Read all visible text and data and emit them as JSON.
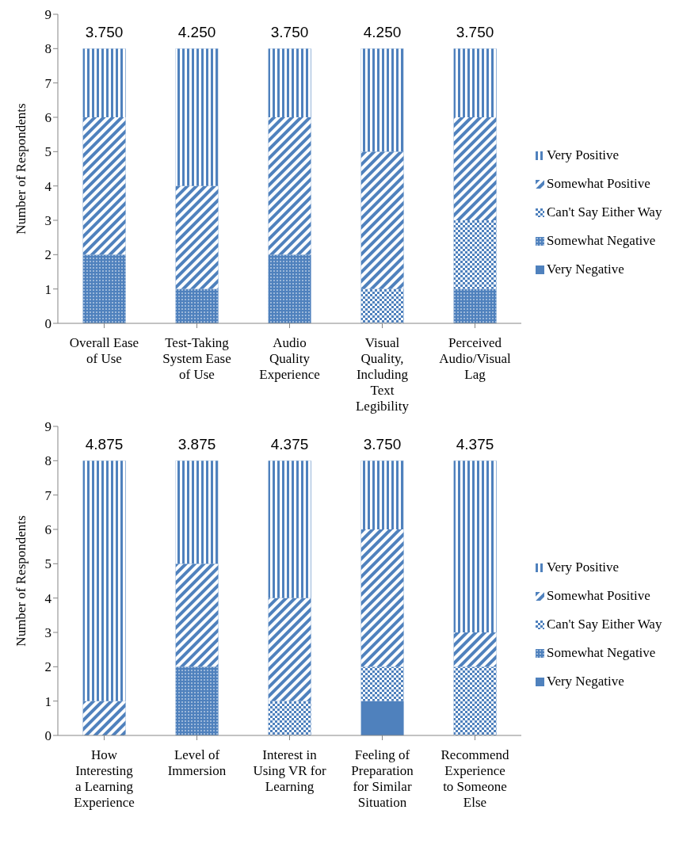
{
  "chart_data": [
    {
      "type": "bar",
      "stacked": true,
      "ylabel": "Number of Respondents",
      "categories": [
        "Overall Ease of Use",
        "Test-Taking System Ease of Use",
        "Audio Quality Experience",
        "Visual Quality, Including Text Legibility",
        "Perceived Audio/Visual Lag"
      ],
      "series": [
        {
          "name": "Very Negative",
          "color": "#4f81bd",
          "values": [
            0,
            0,
            0,
            0,
            0
          ]
        },
        {
          "name": "Somewhat Negative",
          "color": "#4f81bd",
          "values": [
            2,
            1,
            2,
            0,
            1
          ]
        },
        {
          "name": "Can't Say Either Way",
          "color": "#4f81bd",
          "values": [
            0,
            0,
            0,
            1,
            2
          ]
        },
        {
          "name": "Somewhat Positive",
          "color": "#4f81bd",
          "values": [
            4,
            3,
            4,
            4,
            3
          ]
        },
        {
          "name": "Very Positive",
          "color": "#4f81bd",
          "values": [
            2,
            4,
            2,
            3,
            2
          ]
        }
      ],
      "annotations": [
        {
          "text": "3.750",
          "x": "Overall Ease of Use",
          "y": 8
        },
        {
          "text": "4.250",
          "x": "Test-Taking System Ease of Use",
          "y": 8
        },
        {
          "text": "3.750",
          "x": "Audio Quality Experience",
          "y": 8
        },
        {
          "text": "4.250",
          "x": "Visual Quality, Including Text Legibility",
          "y": 8
        },
        {
          "text": "3.750",
          "x": "Perceived Audio/Visual Lag",
          "y": 8
        }
      ],
      "ylim": [
        0,
        9
      ],
      "yticks": [
        0,
        1,
        2,
        3,
        4,
        5,
        6,
        7,
        8,
        9
      ],
      "legend": "right"
    },
    {
      "type": "bar",
      "stacked": true,
      "ylabel": "Number of Respondents",
      "categories": [
        "How Interesting a Learning Experience",
        "Level of Immersion",
        "Interest in Using VR for Learning",
        "Feeling of Preparation for Similar Situation",
        "Recommend Experience to Someone Else"
      ],
      "series": [
        {
          "name": "Very Negative",
          "color": "#4f81bd",
          "values": [
            0,
            0,
            0,
            1,
            0
          ]
        },
        {
          "name": "Somewhat Negative",
          "color": "#4f81bd",
          "values": [
            0,
            2,
            0,
            0,
            0
          ]
        },
        {
          "name": "Can't Say Either Way",
          "color": "#4f81bd",
          "values": [
            0,
            0,
            1,
            1,
            2
          ]
        },
        {
          "name": "Somewhat Positive",
          "color": "#4f81bd",
          "values": [
            1,
            3,
            3,
            4,
            1
          ]
        },
        {
          "name": "Very Positive",
          "color": "#4f81bd",
          "values": [
            7,
            3,
            4,
            2,
            5
          ]
        }
      ],
      "annotations": [
        {
          "text": "4.875",
          "x": "How Interesting a Learning Experience",
          "y": 8
        },
        {
          "text": "3.875",
          "x": "Level of Immersion",
          "y": 8
        },
        {
          "text": "4.375",
          "x": "Interest in Using VR for Learning",
          "y": 8
        },
        {
          "text": "3.750",
          "x": "Feeling of Preparation for Similar Situation",
          "y": 8
        },
        {
          "text": "4.375",
          "x": "Recommend Experience to Someone Else",
          "y": 8
        }
      ],
      "ylim": [
        0,
        9
      ],
      "yticks": [
        0,
        1,
        2,
        3,
        4,
        5,
        6,
        7,
        8,
        9
      ],
      "legend": "right"
    }
  ]
}
